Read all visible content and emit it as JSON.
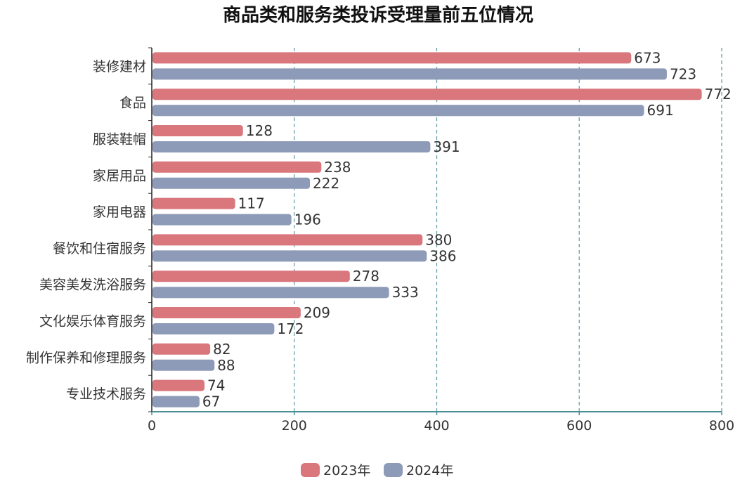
{
  "chart_data": {
    "type": "bar",
    "orientation": "horizontal",
    "title": "商品类和服务类投诉受理量前五位情况",
    "categories": [
      "装修建材",
      "食品",
      "服装鞋帽",
      "家居用品",
      "家用电器",
      "餐饮和住宿服务",
      "美容美发洗浴服务",
      "文化娱乐体育服务",
      "制作保养和修理服务",
      "专业技术服务"
    ],
    "series": [
      {
        "name": "2023年",
        "color": "#d9777d",
        "values": [
          673,
          772,
          128,
          238,
          117,
          380,
          278,
          209,
          82,
          74
        ]
      },
      {
        "name": "2024年",
        "color": "#8e9bb8",
        "values": [
          723,
          691,
          391,
          222,
          196,
          386,
          333,
          172,
          88,
          67
        ]
      }
    ],
    "xlim": [
      0,
      800
    ],
    "xticks": [
      0,
      200,
      400,
      600,
      800
    ],
    "grid": "vertical-dashed",
    "legend_position": "bottom-center",
    "axis_color": "#4a8f95"
  }
}
